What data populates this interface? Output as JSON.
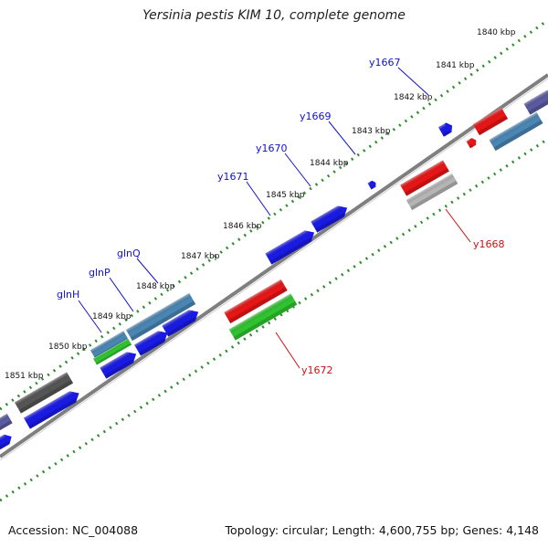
{
  "title": "Yersinia pestis KIM 10, complete genome",
  "footer": {
    "accession_label": "Accession:",
    "accession": "NC_004088",
    "topology_label": "Topology:",
    "topology": "circular",
    "length_label": "Length:",
    "length": "4,600,755 bp",
    "genes_label": "Genes:",
    "genes": "4,148"
  },
  "colors": {
    "backbone": "#7f7f7f",
    "ruler_dots": "#2e8b2e",
    "forward_label": "#1010cc",
    "reverse_label": "#cc1111",
    "cds_blue": "#1a1ae6",
    "rna_steel": "#4a86b4",
    "red_feature": "#e81515",
    "green_feature": "#2fc42f",
    "grey_feature": "#b5b5b5",
    "dark_feature": "#555555",
    "slate_feature": "#5a5aa0"
  },
  "ruler_ticks": [
    {
      "kbp": 1840,
      "label": "1840 kbp"
    },
    {
      "kbp": 1841,
      "label": "1841 kbp"
    },
    {
      "kbp": 1842,
      "label": "1842 kbp"
    },
    {
      "kbp": 1843,
      "label": "1843 kbp"
    },
    {
      "kbp": 1844,
      "label": "1844 kbp"
    },
    {
      "kbp": 1845,
      "label": "1845 kbp"
    },
    {
      "kbp": 1846,
      "label": "1846 kbp"
    },
    {
      "kbp": 1847,
      "label": "1847 kbp"
    },
    {
      "kbp": 1848,
      "label": "1848 kbp"
    },
    {
      "kbp": 1849,
      "label": "1849 kbp"
    },
    {
      "kbp": 1850,
      "label": "1850 kbp"
    },
    {
      "kbp": 1851,
      "label": "1851 kbp"
    }
  ],
  "gene_labels": [
    {
      "name": "y1667",
      "strand": "forward"
    },
    {
      "name": "y1669",
      "strand": "forward"
    },
    {
      "name": "y1670",
      "strand": "forward"
    },
    {
      "name": "y1671",
      "strand": "forward"
    },
    {
      "name": "glnQ",
      "strand": "forward"
    },
    {
      "name": "glnP",
      "strand": "forward"
    },
    {
      "name": "glnH",
      "strand": "forward"
    },
    {
      "name": "y1668",
      "strand": "reverse"
    },
    {
      "name": "y1672",
      "strand": "reverse"
    }
  ]
}
